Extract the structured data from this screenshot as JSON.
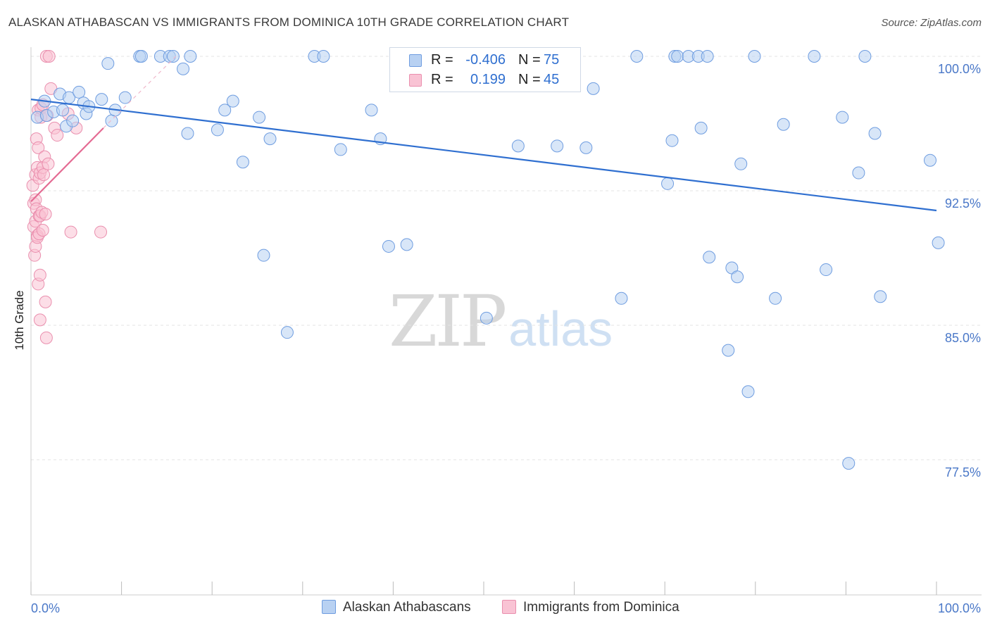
{
  "title": "ALASKAN ATHABASCAN VS IMMIGRANTS FROM DOMINICA 10TH GRADE CORRELATION CHART",
  "source": "Source: ZipAtlas.com",
  "watermark": {
    "zip": "ZIP",
    "atlas": "atlas"
  },
  "legend": {
    "r_label": "R =",
    "n_label": "N =",
    "rows": [
      {
        "r": "-0.406",
        "n": "75",
        "fill": "#b8d1f2",
        "stroke": "#6f9de0"
      },
      {
        "r": "0.199",
        "n": "45",
        "fill": "#f9c3d4",
        "stroke": "#ea8fae"
      }
    ]
  },
  "chart_data": {
    "type": "scatter",
    "title": "ALASKAN ATHABASCAN VS IMMIGRANTS FROM DOMINICA 10TH GRADE CORRELATION CHART",
    "xlabel": "",
    "ylabel": "10th Grade",
    "xlim": [
      0,
      100
    ],
    "ylim": [
      70.5,
      101.5
    ],
    "x_tick_labels": [
      "0.0%",
      "100.0%"
    ],
    "y_ticks": [
      77.5,
      85.0,
      92.5,
      100.0
    ],
    "y_tick_labels": [
      "77.5%",
      "85.0%",
      "92.5%",
      "100.0%"
    ],
    "grid": true,
    "series": [
      {
        "name": "Alaskan Athabascans",
        "color": "#6f9de0",
        "fill": "#b8d1f2",
        "points": [
          [
            0.7,
            96.6
          ],
          [
            1.5,
            97.5
          ],
          [
            1.7,
            96.7
          ],
          [
            2.5,
            96.9
          ],
          [
            3.2,
            97.9
          ],
          [
            3.5,
            97.0
          ],
          [
            3.9,
            96.1
          ],
          [
            4.2,
            97.7
          ],
          [
            4.6,
            96.4
          ],
          [
            5.3,
            98.0
          ],
          [
            5.8,
            97.4
          ],
          [
            6.1,
            96.8
          ],
          [
            6.4,
            97.2
          ],
          [
            7.8,
            97.6
          ],
          [
            8.5,
            99.6
          ],
          [
            8.9,
            96.4
          ],
          [
            9.3,
            97.0
          ],
          [
            10.4,
            97.7
          ],
          [
            12.0,
            100.0
          ],
          [
            12.2,
            100.0
          ],
          [
            14.3,
            100.0
          ],
          [
            15.3,
            100.0
          ],
          [
            15.7,
            100.0
          ],
          [
            16.8,
            99.3
          ],
          [
            17.3,
            95.7
          ],
          [
            17.6,
            100.0
          ],
          [
            20.6,
            95.9
          ],
          [
            21.4,
            97.0
          ],
          [
            22.3,
            97.5
          ],
          [
            23.4,
            94.1
          ],
          [
            25.2,
            96.6
          ],
          [
            25.7,
            88.9
          ],
          [
            26.4,
            95.4
          ],
          [
            28.3,
            84.6
          ],
          [
            31.3,
            100.0
          ],
          [
            32.3,
            100.0
          ],
          [
            34.2,
            94.8
          ],
          [
            37.6,
            97.0
          ],
          [
            38.6,
            95.4
          ],
          [
            39.5,
            89.4
          ],
          [
            41.5,
            89.5
          ],
          [
            50.3,
            85.4
          ],
          [
            53.8,
            95.0
          ],
          [
            58.1,
            95.0
          ],
          [
            61.3,
            94.9
          ],
          [
            62.1,
            98.2
          ],
          [
            65.2,
            86.5
          ],
          [
            66.9,
            100.0
          ],
          [
            70.3,
            92.9
          ],
          [
            70.8,
            95.3
          ],
          [
            71.1,
            100.0
          ],
          [
            71.4,
            100.0
          ],
          [
            72.6,
            100.0
          ],
          [
            73.7,
            100.0
          ],
          [
            74.0,
            96.0
          ],
          [
            74.7,
            100.0
          ],
          [
            74.9,
            88.8
          ],
          [
            77.0,
            83.6
          ],
          [
            77.4,
            88.2
          ],
          [
            78.0,
            87.7
          ],
          [
            78.4,
            94.0
          ],
          [
            79.2,
            81.3
          ],
          [
            79.9,
            100.0
          ],
          [
            82.2,
            86.5
          ],
          [
            83.1,
            96.2
          ],
          [
            86.5,
            100.0
          ],
          [
            87.8,
            88.1
          ],
          [
            89.6,
            96.6
          ],
          [
            90.3,
            77.3
          ],
          [
            91.4,
            93.5
          ],
          [
            92.1,
            100.0
          ],
          [
            93.2,
            95.7
          ],
          [
            93.8,
            86.6
          ],
          [
            99.3,
            94.2
          ],
          [
            100.2,
            89.6
          ]
        ]
      },
      {
        "name": "Immigrants from Dominica",
        "color": "#ea8fae",
        "fill": "#f9c3d4",
        "points": [
          [
            0.2,
            92.8
          ],
          [
            0.3,
            90.5
          ],
          [
            0.3,
            91.8
          ],
          [
            0.4,
            88.9
          ],
          [
            0.5,
            92.0
          ],
          [
            0.5,
            89.4
          ],
          [
            0.5,
            90.8
          ],
          [
            0.5,
            93.4
          ],
          [
            0.6,
            91.5
          ],
          [
            0.6,
            95.4
          ],
          [
            0.7,
            90.0
          ],
          [
            0.7,
            93.8
          ],
          [
            0.7,
            89.9
          ],
          [
            0.8,
            94.9
          ],
          [
            0.8,
            97.0
          ],
          [
            0.8,
            87.3
          ],
          [
            0.9,
            91.1
          ],
          [
            0.9,
            93.2
          ],
          [
            0.9,
            90.1
          ],
          [
            1.0,
            87.8
          ],
          [
            1.0,
            91.1
          ],
          [
            1.0,
            85.3
          ],
          [
            1.0,
            93.5
          ],
          [
            1.1,
            96.6
          ],
          [
            1.1,
            97.1
          ],
          [
            1.2,
            91.3
          ],
          [
            1.3,
            93.8
          ],
          [
            1.3,
            97.3
          ],
          [
            1.3,
            90.3
          ],
          [
            1.4,
            93.4
          ],
          [
            1.5,
            94.4
          ],
          [
            1.6,
            91.2
          ],
          [
            1.6,
            86.3
          ],
          [
            1.7,
            84.3
          ],
          [
            1.7,
            100.0
          ],
          [
            1.8,
            96.7
          ],
          [
            1.9,
            94.0
          ],
          [
            2.0,
            100.0
          ],
          [
            2.2,
            98.2
          ],
          [
            2.6,
            96.0
          ],
          [
            2.9,
            95.6
          ],
          [
            4.1,
            96.8
          ],
          [
            4.4,
            90.2
          ],
          [
            5.0,
            96.0
          ],
          [
            7.7,
            90.2
          ]
        ]
      }
    ],
    "trendlines": [
      {
        "series": "Alaskan Athabascans",
        "x": [
          0,
          100
        ],
        "y": [
          97.6,
          91.4
        ]
      },
      {
        "series": "Immigrants from Dominica",
        "x": [
          0,
          8
        ],
        "y": [
          91.9,
          96.0
        ]
      }
    ]
  },
  "bottom_legend": [
    "Alaskan Athabascans",
    "Immigrants from Dominica"
  ]
}
